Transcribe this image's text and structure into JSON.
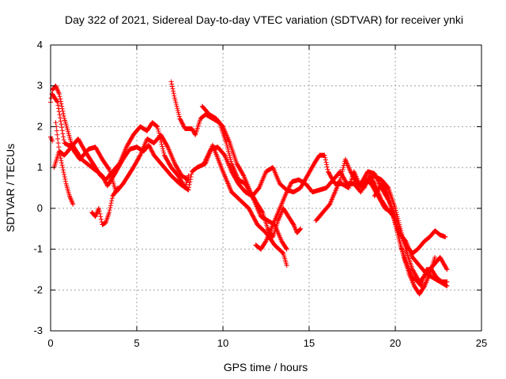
{
  "chart_data": {
    "type": "scatter",
    "title": "Day 322 of 2021, Sidereal Day-to-day VTEC variation (SDTVAR) for receiver ynki",
    "xlabel": "GPS time / hours",
    "ylabel": "SDTVAR / TECUs",
    "xlim": [
      0,
      25
    ],
    "ylim": [
      -3,
      4
    ],
    "xticks": [
      "0",
      "5",
      "10",
      "15",
      "20",
      "25"
    ],
    "yticks": [
      "-3",
      "-2",
      "-1",
      "0",
      "1",
      "2",
      "3",
      "4"
    ],
    "grid": true,
    "marker": "+",
    "series": [
      {
        "name": "SDTVAR",
        "color": "#ff0000",
        "tracks": [
          [
            [
              0.0,
              2.6
            ],
            [
              0.1,
              2.9
            ],
            [
              0.3,
              3.0
            ],
            [
              0.5,
              2.8
            ],
            [
              0.8,
              2.2
            ],
            [
              1.2,
              1.6
            ],
            [
              1.8,
              1.2
            ],
            [
              2.4,
              1.0
            ],
            [
              3.0,
              0.8
            ],
            [
              3.3,
              0.55
            ],
            [
              3.8,
              0.9
            ],
            [
              4.2,
              1.2
            ],
            [
              4.6,
              1.45
            ],
            [
              5.0,
              1.5
            ],
            [
              5.4,
              1.4
            ],
            [
              5.7,
              1.55
            ],
            [
              6.0,
              1.3
            ],
            [
              6.4,
              1.1
            ],
            [
              7.0,
              0.8
            ],
            [
              7.5,
              0.6
            ],
            [
              8.0,
              0.45
            ],
            [
              8.2,
              0.9
            ],
            [
              8.5,
              1.0
            ],
            [
              9.0,
              1.1
            ],
            [
              9.4,
              1.55
            ],
            [
              10.0,
              0.9
            ],
            [
              10.5,
              0.4
            ],
            [
              11.0,
              0.2
            ],
            [
              11.5,
              0.0
            ],
            [
              12.0,
              -0.4
            ],
            [
              12.5,
              -0.6
            ],
            [
              13.0,
              -0.9
            ],
            [
              13.5,
              -1.1
            ],
            [
              13.7,
              -1.4
            ]
          ],
          [
            [
              0.1,
              2.8
            ],
            [
              0.4,
              2.6
            ],
            [
              0.8,
              1.6
            ],
            [
              1.2,
              1.5
            ],
            [
              1.6,
              1.7
            ],
            [
              2.0,
              1.4
            ],
            [
              2.3,
              1.2
            ],
            [
              2.6,
              1.0
            ],
            [
              2.9,
              0.8
            ],
            [
              3.2,
              0.7
            ],
            [
              3.6,
              0.9
            ],
            [
              4.0,
              1.1
            ],
            [
              4.4,
              1.5
            ],
            [
              4.8,
              1.8
            ],
            [
              5.2,
              2.0
            ],
            [
              5.6,
              1.9
            ],
            [
              5.9,
              2.1
            ],
            [
              6.2,
              2.0
            ],
            [
              6.6,
              1.3
            ],
            [
              7.0,
              1.0
            ],
            [
              7.4,
              0.8
            ],
            [
              7.8,
              0.5
            ],
            [
              8.0,
              0.8
            ]
          ],
          [
            [
              0.2,
              1.0
            ],
            [
              0.5,
              1.4
            ],
            [
              0.8,
              1.3
            ],
            [
              1.2,
              1.5
            ],
            [
              1.7,
              1.2
            ],
            [
              2.2,
              1.45
            ],
            [
              2.6,
              1.5
            ],
            [
              3.0,
              1.2
            ],
            [
              3.4,
              0.95
            ],
            [
              3.8,
              0.4
            ],
            [
              4.2,
              0.6
            ],
            [
              4.5,
              0.8
            ],
            [
              4.8,
              1.0
            ],
            [
              5.2,
              1.3
            ],
            [
              5.6,
              1.7
            ],
            [
              6.0,
              1.6
            ],
            [
              6.4,
              1.8
            ],
            [
              6.8,
              1.5
            ],
            [
              7.2,
              1.1
            ],
            [
              7.6,
              0.8
            ],
            [
              8.0,
              0.7
            ]
          ],
          [
            [
              0.3,
              2.1
            ],
            [
              0.5,
              1.4
            ],
            [
              0.7,
              1.0
            ],
            [
              0.9,
              0.6
            ],
            [
              1.1,
              0.3
            ],
            [
              1.3,
              0.1
            ]
          ],
          [
            [
              0.0,
              1.75
            ],
            [
              0.1,
              1.65
            ]
          ],
          [
            [
              2.4,
              -0.1
            ],
            [
              2.6,
              -0.2
            ],
            [
              2.8,
              0.0
            ],
            [
              2.9,
              -0.2
            ],
            [
              3.0,
              -0.4
            ],
            [
              3.2,
              -0.35
            ],
            [
              3.4,
              -0.1
            ],
            [
              3.6,
              0.3
            ],
            [
              3.9,
              0.5
            ]
          ],
          [
            [
              7.0,
              3.1
            ],
            [
              7.2,
              2.7
            ],
            [
              7.5,
              2.2
            ],
            [
              7.8,
              1.95
            ],
            [
              8.2,
              1.95
            ],
            [
              8.4,
              1.8
            ],
            [
              8.7,
              2.2
            ],
            [
              9.0,
              2.3
            ],
            [
              9.4,
              2.2
            ],
            [
              9.8,
              2.1
            ],
            [
              10.2,
              1.6
            ],
            [
              10.5,
              1.1
            ],
            [
              10.9,
              0.7
            ],
            [
              11.3,
              0.6
            ],
            [
              11.8,
              0.2
            ],
            [
              12.2,
              -0.2
            ],
            [
              12.6,
              -0.3
            ],
            [
              13.0,
              -0.4
            ],
            [
              13.4,
              -0.8
            ],
            [
              13.7,
              -1.0
            ]
          ],
          [
            [
              8.8,
              2.5
            ],
            [
              9.2,
              2.3
            ],
            [
              9.6,
              2.2
            ],
            [
              10.0,
              2.0
            ],
            [
              10.4,
              1.6
            ],
            [
              10.8,
              1.1
            ],
            [
              11.2,
              0.8
            ],
            [
              11.6,
              0.4
            ],
            [
              12.0,
              0.1
            ],
            [
              12.3,
              -0.1
            ],
            [
              12.6,
              -0.5
            ],
            [
              12.9,
              -0.7
            ],
            [
              13.2,
              -0.3
            ],
            [
              13.5,
              0.0
            ],
            [
              13.8,
              -0.2
            ],
            [
              14.1,
              -0.4
            ],
            [
              14.3,
              -0.6
            ],
            [
              14.5,
              -0.5
            ]
          ],
          [
            [
              8.9,
              1.1
            ],
            [
              9.3,
              1.45
            ],
            [
              9.7,
              1.5
            ],
            [
              10.1,
              1.3
            ],
            [
              10.5,
              0.9
            ],
            [
              10.9,
              0.6
            ],
            [
              11.3,
              0.4
            ],
            [
              11.7,
              0.3
            ],
            [
              12.1,
              0.5
            ],
            [
              12.5,
              0.9
            ],
            [
              12.9,
              1.0
            ],
            [
              13.3,
              0.6
            ],
            [
              13.7,
              0.45
            ],
            [
              14.1,
              0.4
            ],
            [
              14.5,
              0.5
            ],
            [
              14.9,
              0.8
            ],
            [
              15.3,
              1.1
            ],
            [
              15.6,
              1.3
            ],
            [
              15.9,
              1.3
            ],
            [
              16.1,
              0.9
            ],
            [
              16.5,
              0.6
            ],
            [
              16.9,
              0.6
            ],
            [
              17.3,
              0.5
            ],
            [
              17.6,
              0.9
            ],
            [
              17.9,
              0.6
            ],
            [
              18.3,
              0.6
            ],
            [
              18.7,
              0.8
            ],
            [
              19.2,
              0.7
            ],
            [
              19.6,
              0.5
            ],
            [
              20.0,
              0.0
            ],
            [
              20.3,
              -0.5
            ],
            [
              20.6,
              -1.0
            ],
            [
              21.0,
              -1.5
            ],
            [
              21.4,
              -1.8
            ],
            [
              21.8,
              -1.6
            ],
            [
              22.2,
              -1.4
            ],
            [
              22.6,
              -1.2
            ],
            [
              23.0,
              -1.5
            ]
          ],
          [
            [
              11.9,
              -0.9
            ],
            [
              12.2,
              -1.0
            ],
            [
              12.5,
              -0.8
            ],
            [
              12.9,
              -0.4
            ],
            [
              13.3,
              0.0
            ],
            [
              13.7,
              0.4
            ],
            [
              14.0,
              0.65
            ],
            [
              14.4,
              0.7
            ],
            [
              14.8,
              0.6
            ],
            [
              15.2,
              0.4
            ],
            [
              15.6,
              0.45
            ],
            [
              16.0,
              0.5
            ],
            [
              16.4,
              0.7
            ],
            [
              16.8,
              0.9
            ],
            [
              17.2,
              0.6
            ],
            [
              17.6,
              0.6
            ],
            [
              18.0,
              0.4
            ],
            [
              18.3,
              0.7
            ],
            [
              18.6,
              0.6
            ],
            [
              19.0,
              0.3
            ],
            [
              19.4,
              0.0
            ],
            [
              19.8,
              -0.1
            ],
            [
              20.2,
              -0.6
            ],
            [
              20.6,
              -0.8
            ],
            [
              21.0,
              -1.2
            ],
            [
              21.4,
              -1.4
            ],
            [
              21.8,
              -1.6
            ],
            [
              22.2,
              -1.7
            ],
            [
              22.6,
              -1.8
            ],
            [
              23.0,
              -1.9
            ]
          ],
          [
            [
              15.4,
              -0.3
            ],
            [
              15.8,
              -0.1
            ],
            [
              16.2,
              0.1
            ],
            [
              16.5,
              0.4
            ],
            [
              16.8,
              0.7
            ],
            [
              17.1,
              1.2
            ],
            [
              17.4,
              0.9
            ],
            [
              17.8,
              0.6
            ],
            [
              18.2,
              0.5
            ],
            [
              18.5,
              0.8
            ],
            [
              18.8,
              0.6
            ],
            [
              19.2,
              0.2
            ],
            [
              19.5,
              0.0
            ],
            [
              19.9,
              -0.2
            ],
            [
              20.2,
              -0.7
            ],
            [
              20.5,
              -1.2
            ],
            [
              20.8,
              -1.6
            ],
            [
              21.1,
              -1.9
            ],
            [
              21.4,
              -2.1
            ],
            [
              21.7,
              -1.9
            ],
            [
              22.0,
              -1.6
            ],
            [
              22.3,
              -1.2
            ]
          ],
          [
            [
              18.0,
              0.6
            ],
            [
              18.4,
              0.9
            ],
            [
              18.8,
              0.85
            ],
            [
              19.2,
              0.5
            ],
            [
              19.6,
              0.2
            ],
            [
              20.0,
              -0.2
            ],
            [
              20.3,
              -0.6
            ],
            [
              20.6,
              -0.9
            ],
            [
              21.0,
              -1.1
            ],
            [
              21.3,
              -1.0
            ],
            [
              21.7,
              -0.8
            ],
            [
              22.0,
              -0.7
            ],
            [
              22.3,
              -0.55
            ],
            [
              22.6,
              -0.65
            ],
            [
              22.9,
              -0.7
            ]
          ],
          [
            [
              18.8,
              0.3
            ],
            [
              19.2,
              0.6
            ],
            [
              19.5,
              0.4
            ],
            [
              19.8,
              0.0
            ],
            [
              20.0,
              -0.4
            ],
            [
              20.3,
              -0.9
            ],
            [
              20.6,
              -1.3
            ],
            [
              21.0,
              -1.7
            ],
            [
              21.2,
              -1.75
            ],
            [
              21.5,
              -1.9
            ],
            [
              21.8,
              -1.5
            ],
            [
              22.1,
              -1.5
            ],
            [
              22.4,
              -1.7
            ],
            [
              22.7,
              -1.8
            ],
            [
              23.0,
              -1.8
            ]
          ]
        ]
      }
    ]
  }
}
